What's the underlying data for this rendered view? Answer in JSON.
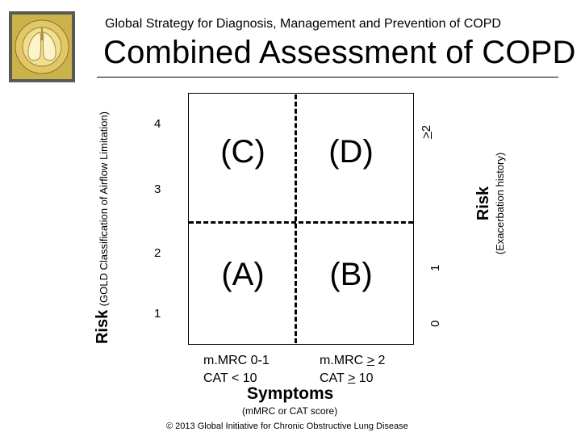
{
  "header": {
    "subtitle": "Global Strategy for Diagnosis, Management and Prevention of COPD",
    "title": "Combined Assessment of COPD",
    "logo_text": "GLOBAL INITIATIVE FOR CHRONIC OBSTRUCTIVE LUNG DISEASE"
  },
  "quadrants": {
    "c": "(C)",
    "d": "(D)",
    "a": "(A)",
    "b": "(B)"
  },
  "left_axis": {
    "label": "Risk",
    "sublabel": "(GOLD Classification of Airflow Limitation)",
    "ticks": [
      "4",
      "3",
      "2",
      "1"
    ]
  },
  "right_axis": {
    "label": "Risk",
    "sublabel": "(Exacerbation history)",
    "ticks": {
      "high_symbol": ">",
      "high_value": "2",
      "mid": "1",
      "low": "0"
    }
  },
  "x_axis": {
    "left": {
      "line1": "m.MRC 0-1",
      "line2": "CAT < 10"
    },
    "right": {
      "line1_prefix": "m.MRC ",
      "line1_symbol": ">",
      "line1_value": " 2",
      "line2_prefix": "CAT ",
      "line2_symbol": ">",
      "line2_value": " 10"
    },
    "label": "Symptoms",
    "sublabel": "(mMRC or CAT score)"
  },
  "footer": {
    "copyright": "© 2013 Global Initiative for Chronic Obstructive Lung Disease"
  },
  "colors": {
    "logo_bg": "#5a5a52",
    "logo_gold": "#d7b84a",
    "logo_lung": "#f1df8f"
  }
}
